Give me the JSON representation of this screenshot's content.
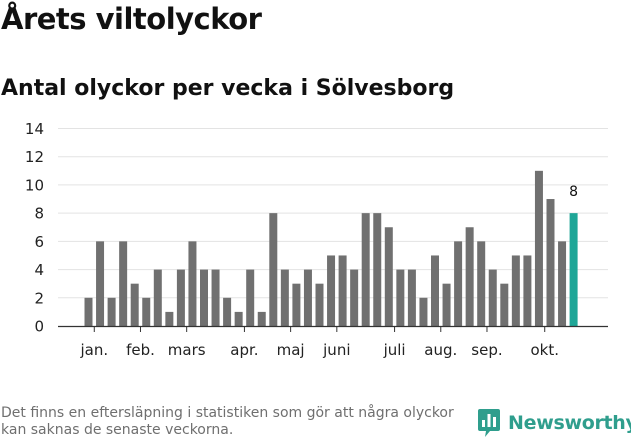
{
  "header": {
    "title": "Årets viltolyckor",
    "subtitle": "Antal olyckor per vecka i Sölvesborg"
  },
  "footer": {
    "note": "Det finns en eftersläpning i statistiken som gör att några olyckor kan saknas de senaste veckorna.",
    "brand": "Newsworthy",
    "brand_icon": "newsworthy-logo-icon"
  },
  "colors": {
    "bar": "#707070",
    "highlight": "#1ea697",
    "grid": "#e3e3e3",
    "axis": "#333333",
    "brand": "#2f9e8d"
  },
  "chart_data": {
    "type": "bar",
    "title": "Antal olyckor per vecka i Sölvesborg",
    "xlabel": "",
    "ylabel": "",
    "ylim": [
      0,
      14
    ],
    "yticks": [
      0,
      2,
      4,
      6,
      8,
      10,
      12,
      14
    ],
    "grid": true,
    "week_start": 1,
    "week_end": 43,
    "values": [
      2,
      6,
      2,
      6,
      3,
      2,
      4,
      1,
      4,
      6,
      4,
      4,
      2,
      1,
      4,
      1,
      8,
      4,
      3,
      4,
      3,
      5,
      5,
      4,
      8,
      8,
      7,
      4,
      4,
      2,
      5,
      3,
      6,
      7,
      6,
      4,
      3,
      5,
      5,
      11,
      9,
      6,
      8
    ],
    "highlight_index": 42,
    "highlight_label": "8",
    "month_labels": [
      {
        "label": "jan.",
        "week": 1.5
      },
      {
        "label": "feb.",
        "week": 5.5
      },
      {
        "label": "mars",
        "week": 9.5
      },
      {
        "label": "apr.",
        "week": 14.5
      },
      {
        "label": "maj",
        "week": 18.5
      },
      {
        "label": "juni",
        "week": 22.5
      },
      {
        "label": "juli",
        "week": 27.5
      },
      {
        "label": "aug.",
        "week": 31.5
      },
      {
        "label": "sep.",
        "week": 35.5
      },
      {
        "label": "okt.",
        "week": 40.5
      }
    ]
  }
}
